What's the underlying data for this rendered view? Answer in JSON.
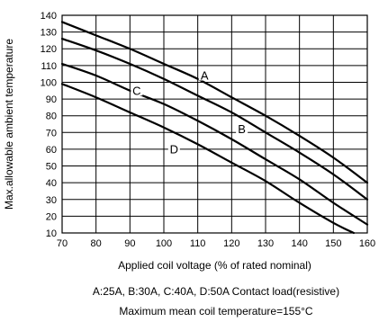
{
  "chart_data": {
    "type": "line",
    "title": "",
    "xlabel": "Applied coil voltage (% of rated nominal)",
    "ylabel": "Max.allowable ambient temperature",
    "xlim": [
      70,
      160
    ],
    "ylim": [
      10,
      140
    ],
    "x_ticks": [
      70,
      80,
      90,
      100,
      110,
      120,
      130,
      140,
      150,
      160
    ],
    "y_ticks": [
      10,
      20,
      30,
      40,
      50,
      60,
      70,
      80,
      90,
      100,
      110,
      120,
      130,
      140
    ],
    "grid": true,
    "series": [
      {
        "name": "A",
        "x": [
          70,
          80,
          90,
          100,
          110,
          120,
          130,
          140,
          150,
          160
        ],
        "y": [
          136,
          128,
          120,
          111,
          102,
          91,
          80,
          68,
          55,
          40
        ]
      },
      {
        "name": "B",
        "x": [
          70,
          80,
          90,
          100,
          110,
          120,
          130,
          140,
          150,
          160
        ],
        "y": [
          126,
          119,
          111,
          102,
          92,
          82,
          70,
          58,
          45,
          30
        ]
      },
      {
        "name": "C",
        "x": [
          70,
          80,
          90,
          100,
          110,
          120,
          130,
          140,
          150,
          160
        ],
        "y": [
          111,
          104,
          95,
          87,
          77,
          66,
          54,
          42,
          28,
          15
        ]
      },
      {
        "name": "D",
        "x": [
          70,
          80,
          90,
          100,
          110,
          120,
          130,
          140,
          150,
          156
        ],
        "y": [
          99,
          91,
          82,
          73,
          63,
          52,
          41,
          28,
          16,
          10
        ]
      }
    ],
    "annotations": [
      {
        "text": "A",
        "x": 112,
        "y": 104
      },
      {
        "text": "B",
        "x": 123,
        "y": 72
      },
      {
        "text": "C",
        "x": 92,
        "y": 95
      },
      {
        "text": "D",
        "x": 103,
        "y": 60
      }
    ]
  },
  "notes": {
    "line1": "A:25A, B:30A, C:40A, D:50A Contact load(resistive)",
    "line2": "Maximum mean coil temperature=155°C"
  }
}
